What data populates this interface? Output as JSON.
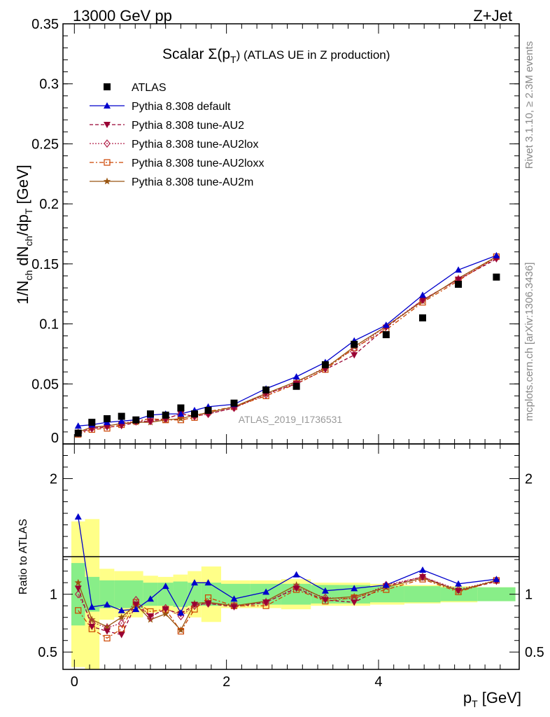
{
  "header": {
    "left": "13000 GeV pp",
    "right": "Z+Jet"
  },
  "side_text": {
    "upper": "Rivet 3.1.10, ≥ 2.3M events",
    "lower": "mcplots.cern.ch [arXiv:1306.3436]"
  },
  "colors": {
    "atlas": "#000000",
    "default": "#0000cc",
    "au2": "#990033",
    "au2lox": "#b2224b",
    "au2loxx": "#cc4400",
    "au2m": "#995511",
    "band_inner": "#88ee88",
    "band_outer": "#ffff88"
  },
  "chart_data": [
    {
      "type": "scatter",
      "title_main": "Scalar Σ(p",
      "title_sub": "T",
      "title_rest": ") (ATLAS UE in Z production)",
      "watermark": "ATLAS_2019_I1736531",
      "ylabel": "1/N_ch dN_ch/dp_T [GeV]",
      "ylim": [
        0,
        0.35
      ],
      "xlim": [
        -0.15,
        5.85
      ],
      "yticks": [
        "0",
        "0.05",
        "0.1",
        "0.15",
        "0.2",
        "0.25",
        "0.3",
        "0.35"
      ],
      "x": [
        0.05,
        0.23,
        0.43,
        0.62,
        0.81,
        1.0,
        1.2,
        1.4,
        1.58,
        1.76,
        2.1,
        2.52,
        2.92,
        3.3,
        3.68,
        4.1,
        4.58,
        5.05,
        5.55
      ],
      "series": [
        {
          "name": "ATLAS",
          "marker": "square",
          "values": [
            0.009,
            0.018,
            0.021,
            0.023,
            0.02,
            0.025,
            0.024,
            0.03,
            0.025,
            0.028,
            0.034,
            0.045,
            0.048,
            0.066,
            0.083,
            0.091,
            0.105,
            0.133,
            0.139
          ]
        },
        {
          "name": "Pythia 8.308 default",
          "marker": "triangle-up",
          "line": "solid",
          "values": [
            0.015,
            0.016,
            0.018,
            0.019,
            0.02,
            0.024,
            0.025,
            0.025,
            0.028,
            0.031,
            0.033,
            0.046,
            0.056,
            0.068,
            0.086,
            0.099,
            0.124,
            0.145,
            0.157
          ]
        },
        {
          "name": "Pythia 8.308 tune-AU2",
          "marker": "triangle-down",
          "line": "dashed",
          "values": [
            0.009,
            0.013,
            0.014,
            0.015,
            0.018,
            0.019,
            0.021,
            0.025,
            0.023,
            0.025,
            0.03,
            0.042,
            0.05,
            0.062,
            0.074,
            0.097,
            0.12,
            0.137,
            0.154
          ]
        },
        {
          "name": "Pythia 8.308 tune-AU2lox",
          "marker": "diamond",
          "line": "dotted",
          "values": [
            0.009,
            0.013,
            0.015,
            0.017,
            0.019,
            0.019,
            0.021,
            0.025,
            0.023,
            0.025,
            0.03,
            0.041,
            0.051,
            0.064,
            0.079,
            0.098,
            0.12,
            0.137,
            0.155
          ]
        },
        {
          "name": "Pythia 8.308 tune-AU2loxx",
          "marker": "square-open",
          "line": "dashdot",
          "values": [
            0.008,
            0.012,
            0.013,
            0.016,
            0.019,
            0.021,
            0.02,
            0.02,
            0.022,
            0.027,
            0.031,
            0.04,
            0.05,
            0.062,
            0.08,
            0.095,
            0.118,
            0.136,
            0.156
          ]
        },
        {
          "name": "Pythia 8.308 tune-AU2m",
          "marker": "star",
          "line": "solid",
          "values": [
            0.01,
            0.014,
            0.015,
            0.017,
            0.018,
            0.018,
            0.02,
            0.021,
            0.024,
            0.026,
            0.031,
            0.042,
            0.052,
            0.063,
            0.081,
            0.098,
            0.119,
            0.138,
            0.156
          ]
        }
      ]
    },
    {
      "type": "line",
      "ylabel": "Ratio to ATLAS",
      "ylim": [
        0.35,
        2.3
      ],
      "yticks": [
        "0.5",
        "1",
        "2"
      ],
      "xticks": [
        "0",
        "2",
        "4"
      ],
      "xlabel_main": "p",
      "xlabel_sub": "T",
      "xlabel_rest": " [GeV]",
      "reference": 1,
      "band_inner": [
        0.27,
        0.15,
        0.12,
        0.12,
        0.12,
        0.1,
        0.1,
        0.11,
        0.1,
        0.1,
        0.09,
        0.09,
        0.09,
        0.08,
        0.08,
        0.07,
        0.07,
        0.06,
        0.06
      ],
      "band_outer": [
        0.63,
        0.65,
        0.22,
        0.2,
        0.2,
        0.16,
        0.15,
        0.17,
        0.2,
        0.24,
        0.12,
        0.12,
        0.13,
        0.1,
        0.1,
        0.09,
        0.08,
        0.07,
        0.06
      ],
      "series": [
        {
          "name": "Pythia 8.308 default",
          "values": [
            1.67,
            0.89,
            0.91,
            0.86,
            0.87,
            0.96,
            1.07,
            0.84,
            1.1,
            1.1,
            0.96,
            1.02,
            1.17,
            1.03,
            1.05,
            1.08,
            1.21,
            1.09,
            1.13
          ]
        },
        {
          "name": "Pythia 8.308 tune-AU2",
          "values": [
            1.05,
            0.72,
            0.68,
            0.65,
            0.91,
            0.81,
            0.87,
            0.83,
            0.91,
            0.92,
            0.89,
            0.93,
            1.05,
            0.95,
            0.93,
            1.07,
            1.15,
            1.03,
            1.11
          ]
        },
        {
          "name": "Pythia 8.308 tune-AU2lox",
          "values": [
            1.0,
            0.76,
            0.71,
            0.75,
            0.95,
            0.8,
            0.88,
            0.81,
            0.9,
            0.92,
            0.9,
            0.93,
            1.06,
            0.97,
            0.96,
            1.08,
            1.15,
            1.04,
            1.12
          ]
        },
        {
          "name": "Pythia 8.308 tune-AU2loxx",
          "values": [
            0.86,
            0.7,
            0.62,
            0.7,
            0.93,
            0.85,
            0.87,
            0.68,
            0.87,
            0.97,
            0.9,
            0.9,
            1.04,
            0.94,
            0.97,
            1.04,
            1.13,
            1.02,
            1.12
          ]
        },
        {
          "name": "Pythia 8.308 tune-AU2m",
          "values": [
            1.1,
            0.78,
            0.72,
            0.8,
            0.91,
            0.78,
            0.83,
            0.69,
            0.92,
            0.93,
            0.9,
            0.94,
            1.08,
            0.96,
            0.98,
            1.06,
            1.14,
            1.03,
            1.12
          ]
        }
      ]
    }
  ]
}
